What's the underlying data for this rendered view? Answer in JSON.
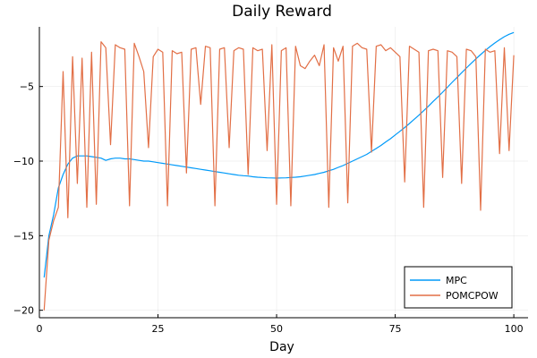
{
  "chart_data": {
    "type": "line",
    "title": "Daily Reward",
    "xlabel": "Day",
    "ylabel": "",
    "xlim": [
      0,
      103
    ],
    "ylim": [
      -20.5,
      -1.0
    ],
    "xticks": [
      0,
      25,
      50,
      75,
      100
    ],
    "yticks": [
      -20,
      -15,
      -10,
      -5
    ],
    "grid": true,
    "legend_position": "bottom-right",
    "series": [
      {
        "name": "MPC",
        "color": "#009af9",
        "x": [
          1,
          2,
          3,
          4,
          5,
          6,
          7,
          8,
          9,
          10,
          11,
          12,
          13,
          14,
          15,
          16,
          17,
          18,
          19,
          20,
          21,
          22,
          23,
          24,
          25,
          26,
          27,
          28,
          29,
          30,
          31,
          32,
          33,
          34,
          35,
          36,
          37,
          38,
          39,
          40,
          41,
          42,
          43,
          44,
          45,
          46,
          47,
          48,
          49,
          50,
          51,
          52,
          53,
          54,
          55,
          56,
          57,
          58,
          59,
          60,
          61,
          62,
          63,
          64,
          65,
          66,
          67,
          68,
          69,
          70,
          71,
          72,
          73,
          74,
          75,
          76,
          77,
          78,
          79,
          80,
          81,
          82,
          83,
          84,
          85,
          86,
          87,
          88,
          89,
          90,
          91,
          92,
          93,
          94,
          95,
          96,
          97,
          98,
          99,
          100
        ],
        "values": [
          -17.8,
          -15.0,
          -13.6,
          -11.8,
          -10.9,
          -10.2,
          -9.8,
          -9.65,
          -9.65,
          -9.65,
          -9.7,
          -9.75,
          -9.8,
          -9.95,
          -9.85,
          -9.8,
          -9.8,
          -9.85,
          -9.85,
          -9.9,
          -9.95,
          -10.0,
          -10.0,
          -10.05,
          -10.1,
          -10.15,
          -10.2,
          -10.25,
          -10.3,
          -10.35,
          -10.4,
          -10.45,
          -10.5,
          -10.55,
          -10.6,
          -10.65,
          -10.7,
          -10.75,
          -10.8,
          -10.85,
          -10.9,
          -10.95,
          -10.98,
          -11.0,
          -11.05,
          -11.08,
          -11.1,
          -11.12,
          -11.13,
          -11.14,
          -11.13,
          -11.12,
          -11.1,
          -11.08,
          -11.05,
          -11.0,
          -10.95,
          -10.9,
          -10.82,
          -10.75,
          -10.65,
          -10.55,
          -10.42,
          -10.3,
          -10.15,
          -10.0,
          -9.85,
          -9.7,
          -9.55,
          -9.35,
          -9.15,
          -8.95,
          -8.72,
          -8.5,
          -8.25,
          -8.0,
          -7.75,
          -7.48,
          -7.2,
          -6.92,
          -6.62,
          -6.32,
          -6.0,
          -5.7,
          -5.38,
          -5.05,
          -4.72,
          -4.4,
          -4.08,
          -3.76,
          -3.45,
          -3.15,
          -2.86,
          -2.58,
          -2.32,
          -2.08,
          -1.86,
          -1.66,
          -1.5,
          -1.38
        ]
      },
      {
        "name": "POMCPOW",
        "color": "#e26f46",
        "x": [
          1,
          2,
          3,
          4,
          5,
          6,
          7,
          8,
          9,
          10,
          11,
          12,
          13,
          14,
          15,
          16,
          17,
          18,
          19,
          20,
          21,
          22,
          23,
          24,
          25,
          26,
          27,
          28,
          29,
          30,
          31,
          32,
          33,
          34,
          35,
          36,
          37,
          38,
          39,
          40,
          41,
          42,
          43,
          44,
          45,
          46,
          47,
          48,
          49,
          50,
          51,
          52,
          53,
          54,
          55,
          56,
          57,
          58,
          59,
          60,
          61,
          62,
          63,
          64,
          65,
          66,
          67,
          68,
          69,
          70,
          71,
          72,
          73,
          74,
          75,
          76,
          77,
          78,
          79,
          80,
          81,
          82,
          83,
          84,
          85,
          86,
          87,
          88,
          89,
          90,
          91,
          92,
          93,
          94,
          95,
          96,
          97,
          98,
          99,
          100
        ],
        "values": [
          -20.0,
          -15.3,
          -14.0,
          -13.1,
          -4.0,
          -13.8,
          -3.0,
          -11.5,
          -3.1,
          -13.1,
          -2.7,
          -12.9,
          -2.0,
          -2.4,
          -8.9,
          -2.2,
          -2.4,
          -2.5,
          -13.0,
          -2.1,
          -3.0,
          -4.0,
          -9.1,
          -3.0,
          -2.5,
          -2.7,
          -13.0,
          -2.6,
          -2.8,
          -2.7,
          -10.8,
          -2.5,
          -2.4,
          -6.2,
          -2.3,
          -2.4,
          -13.0,
          -2.5,
          -2.4,
          -9.1,
          -2.6,
          -2.4,
          -2.5,
          -10.9,
          -2.4,
          -2.6,
          -2.5,
          -9.3,
          -2.2,
          -12.9,
          -2.6,
          -2.4,
          -13.0,
          -2.3,
          -3.6,
          -3.8,
          -3.3,
          -2.9,
          -3.6,
          -2.2,
          -13.1,
          -2.4,
          -3.3,
          -2.3,
          -12.8,
          -2.3,
          -2.1,
          -2.4,
          -2.5,
          -9.4,
          -2.3,
          -2.2,
          -2.6,
          -2.4,
          -2.7,
          -3.0,
          -11.4,
          -2.3,
          -2.5,
          -2.7,
          -13.1,
          -2.6,
          -2.5,
          -2.6,
          -11.1,
          -2.6,
          -2.7,
          -3.0,
          -11.5,
          -2.5,
          -2.6,
          -3.0,
          -13.3,
          -2.5,
          -2.7,
          -2.6,
          -9.5,
          -2.4,
          -9.3,
          -2.9
        ]
      }
    ]
  }
}
